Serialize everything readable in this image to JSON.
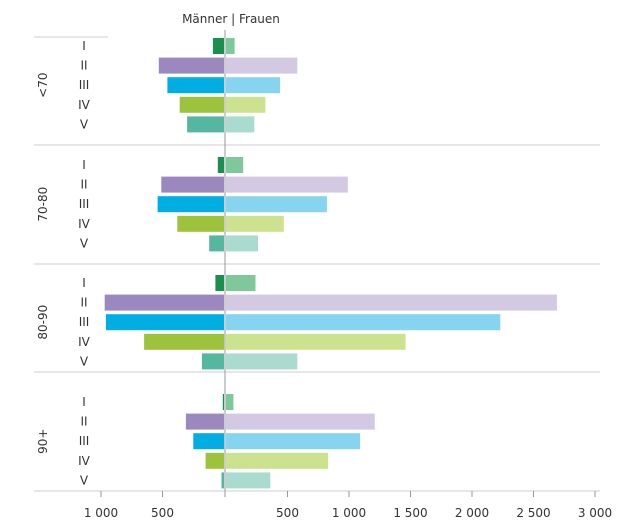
{
  "chart_data": {
    "type": "bar",
    "orientation": "horizontal-butterfly",
    "title": "Männer | Frauen",
    "left_series_name": "Männer",
    "right_series_name": "Frauen",
    "x_tick_labels_left": [
      "1 000",
      "500"
    ],
    "x_tick_labels_right": [
      "500",
      "1 000",
      "1 500",
      "2 000",
      "2 500",
      "3 000"
    ],
    "xlim_left": [
      0,
      1000
    ],
    "xlim_right": [
      0,
      3000
    ],
    "categories": [
      "I",
      "II",
      "III",
      "IV",
      "V"
    ],
    "groups": [
      {
        "label": "<70",
        "maenner": [
          90,
          530,
          460,
          360,
          300
        ],
        "frauen": [
          70,
          580,
          440,
          320,
          230
        ]
      },
      {
        "label": "70-80",
        "maenner": [
          50,
          510,
          540,
          380,
          120
        ],
        "frauen": [
          140,
          990,
          820,
          470,
          260
        ]
      },
      {
        "label": "80-90",
        "maenner": [
          70,
          970,
          960,
          650,
          180
        ],
        "frauen": [
          240,
          2690,
          2230,
          1460,
          580
        ]
      },
      {
        "label": "90+",
        "maenner": [
          10,
          310,
          250,
          150,
          20
        ],
        "frauen": [
          60,
          1210,
          1090,
          830,
          360
        ]
      }
    ],
    "colors": {
      "I": [
        "#1a8f4f",
        "#7fc89a"
      ],
      "II": [
        "#9b88bf",
        "#d3c9e3"
      ],
      "III": [
        "#00aee3",
        "#86d4ef"
      ],
      "IV": [
        "#9dc23b",
        "#cde28f"
      ],
      "V": [
        "#55b7a0",
        "#a9dbce"
      ]
    },
    "grid": false,
    "legend": "none"
  }
}
